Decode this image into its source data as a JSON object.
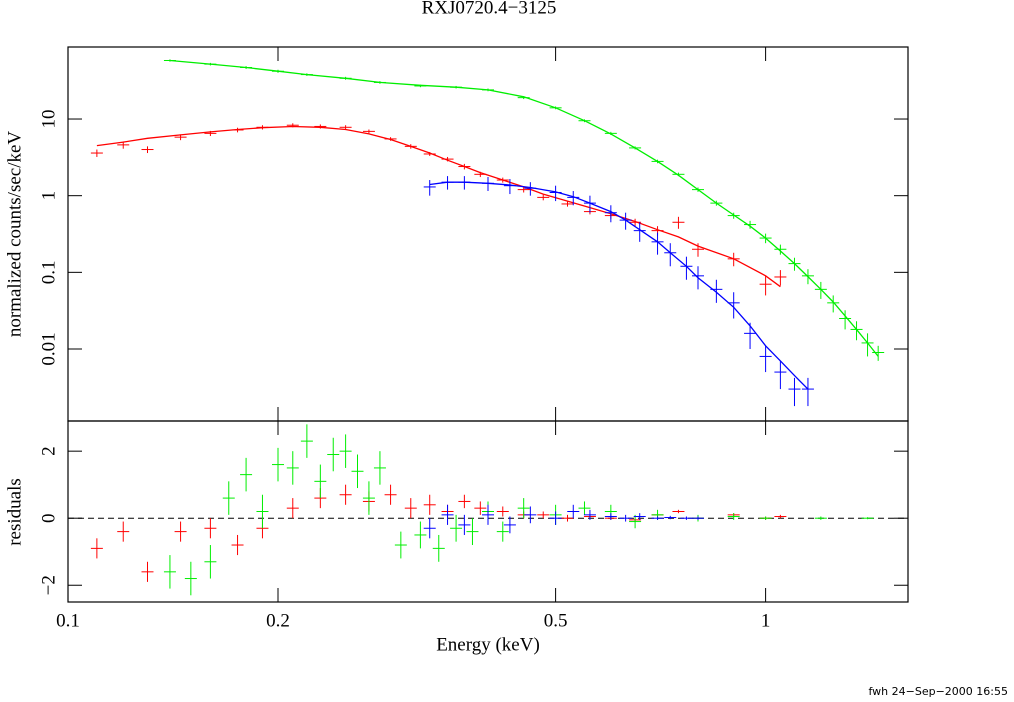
{
  "chart_data": [
    {
      "type": "scatter",
      "title": "RXJ0720.4−3125",
      "y_label": "normalized counts/sec/keV",
      "xlog": true,
      "ylog": true,
      "xlim": [
        0.1,
        1.6
      ],
      "ylim": [
        0.00115,
        87
      ],
      "xticks": [
        0.1,
        0.2,
        0.5,
        1
      ],
      "yticks": [
        0.01,
        0.1,
        1,
        10
      ],
      "series": [
        {
          "color": "#ff0000",
          "x": [
            0.11,
            0.12,
            0.13,
            0.145,
            0.16,
            0.175,
            0.19,
            0.21,
            0.23,
            0.25,
            0.27,
            0.29,
            0.31,
            0.33,
            0.35,
            0.37,
            0.39,
            0.42,
            0.45,
            0.48,
            0.52,
            0.56,
            0.6,
            0.65,
            0.7,
            0.75,
            0.8,
            0.9,
            1.0,
            1.05
          ],
          "values": [
            3.6,
            4.6,
            4.0,
            5.8,
            6.5,
            7.2,
            7.8,
            8.3,
            8.0,
            7.8,
            6.9,
            5.5,
            4.4,
            3.5,
            3.0,
            2.4,
            1.9,
            1.6,
            1.2,
            0.95,
            0.78,
            0.62,
            0.55,
            0.45,
            0.35,
            0.45,
            0.2,
            0.15,
            0.07,
            0.087
          ],
          "yerr": [
            0.4,
            0.5,
            0.4,
            0.5,
            0.5,
            0.5,
            0.5,
            0.5,
            0.5,
            0.5,
            0.4,
            0.3,
            0.3,
            0.2,
            0.2,
            0.2,
            0.15,
            0.12,
            0.1,
            0.08,
            0.06,
            0.05,
            0.05,
            0.05,
            0.05,
            0.08,
            0.04,
            0.03,
            0.02,
            0.02
          ],
          "model": [
            4.5,
            5.0,
            5.6,
            6.2,
            6.8,
            7.3,
            7.7,
            8.0,
            7.8,
            7.3,
            6.4,
            5.4,
            4.4,
            3.6,
            2.9,
            2.4,
            2.0,
            1.6,
            1.3,
            1.05,
            0.85,
            0.7,
            0.58,
            0.46,
            0.36,
            0.29,
            0.22,
            0.15,
            0.09,
            0.065
          ]
        },
        {
          "color": "#00ee00",
          "x": [
            0.14,
            0.16,
            0.18,
            0.2,
            0.22,
            0.25,
            0.28,
            0.32,
            0.36,
            0.4,
            0.45,
            0.5,
            0.55,
            0.6,
            0.65,
            0.7,
            0.75,
            0.8,
            0.85,
            0.9,
            0.95,
            1.0,
            1.05,
            1.1,
            1.15,
            1.2,
            1.25,
            1.3,
            1.35,
            1.4,
            1.45
          ],
          "values": [
            58,
            52,
            47,
            42,
            38,
            34,
            30,
            27,
            26,
            24,
            19,
            14,
            9.5,
            6.5,
            4.2,
            2.8,
            1.9,
            1.2,
            0.8,
            0.55,
            0.42,
            0.28,
            0.2,
            0.13,
            0.09,
            0.06,
            0.04,
            0.025,
            0.018,
            0.012,
            0.009
          ],
          "yerr": [
            2,
            2,
            2,
            2,
            1.5,
            1.5,
            1.2,
            1,
            1,
            1,
            0.8,
            0.6,
            0.4,
            0.3,
            0.2,
            0.15,
            0.1,
            0.08,
            0.06,
            0.05,
            0.05,
            0.04,
            0.03,
            0.025,
            0.02,
            0.015,
            0.01,
            0.007,
            0.005,
            0.004,
            0.002
          ],
          "model": [
            58,
            52,
            47,
            42,
            38,
            34,
            30,
            27.5,
            26,
            24,
            19.5,
            14,
            9.5,
            6.4,
            4.2,
            2.8,
            1.85,
            1.2,
            0.8,
            0.56,
            0.4,
            0.28,
            0.19,
            0.13,
            0.088,
            0.06,
            0.041,
            0.027,
            0.018,
            0.012,
            0.008
          ]
        },
        {
          "color": "#0000ff",
          "x": [
            0.33,
            0.35,
            0.37,
            0.4,
            0.43,
            0.46,
            0.5,
            0.53,
            0.56,
            0.6,
            0.63,
            0.66,
            0.7,
            0.73,
            0.77,
            0.8,
            0.85,
            0.9,
            0.95,
            1.0,
            1.05,
            1.1,
            1.15
          ],
          "values": [
            1.3,
            1.5,
            1.5,
            1.45,
            1.35,
            1.25,
            1.1,
            0.95,
            0.8,
            0.6,
            0.48,
            0.35,
            0.25,
            0.18,
            0.12,
            0.09,
            0.06,
            0.04,
            0.016,
            0.008,
            0.005,
            0.003,
            0.003
          ],
          "yerr": [
            0.3,
            0.3,
            0.3,
            0.3,
            0.3,
            0.25,
            0.25,
            0.2,
            0.2,
            0.15,
            0.12,
            0.1,
            0.08,
            0.06,
            0.04,
            0.03,
            0.02,
            0.015,
            0.006,
            0.003,
            0.002,
            0.0012,
            0.0012
          ],
          "model": [
            1.4,
            1.5,
            1.5,
            1.45,
            1.38,
            1.28,
            1.12,
            0.97,
            0.8,
            0.62,
            0.48,
            0.36,
            0.25,
            0.18,
            0.12,
            0.085,
            0.055,
            0.035,
            0.02,
            0.011,
            0.007,
            0.0045,
            0.003
          ]
        }
      ]
    },
    {
      "type": "scatter",
      "y_label": "residuals",
      "x_label": "Energy (keV)",
      "xlog": true,
      "ylog": false,
      "xlim": [
        0.1,
        1.6
      ],
      "ylim": [
        -2.5,
        2.9
      ],
      "xticks": [
        0.1,
        0.2,
        0.5,
        1
      ],
      "yticks": [
        {
          "value": -2,
          "label": "−2"
        },
        0,
        2
      ],
      "reference_line": 0,
      "series": [
        {
          "color": "#ff0000",
          "x": [
            0.11,
            0.12,
            0.13,
            0.145,
            0.16,
            0.175,
            0.19,
            0.21,
            0.23,
            0.25,
            0.27,
            0.29,
            0.31,
            0.33,
            0.35,
            0.37,
            0.39,
            0.42,
            0.45,
            0.48,
            0.52,
            0.56,
            0.6,
            0.65,
            0.7,
            0.75,
            0.8,
            0.9,
            1.0,
            1.05
          ],
          "values": [
            -0.9,
            -0.4,
            -1.6,
            -0.4,
            -0.3,
            -0.8,
            -0.3,
            0.3,
            0.6,
            0.7,
            0.5,
            0.7,
            0.3,
            0.4,
            0.2,
            0.5,
            0.3,
            0.2,
            0.1,
            0.1,
            0,
            0.05,
            0,
            -0.05,
            0.1,
            0.2,
            0,
            0.1,
            0,
            0.05
          ],
          "yerr": [
            0.3,
            0.3,
            0.3,
            0.3,
            0.3,
            0.3,
            0.3,
            0.3,
            0.3,
            0.3,
            0.3,
            0.3,
            0.3,
            0.3,
            0.2,
            0.2,
            0.2,
            0.15,
            0.1,
            0.1,
            0.1,
            0.05,
            0.05,
            0.05,
            0.05,
            0.05,
            0.05,
            0.05,
            0.05,
            0.05
          ]
        },
        {
          "color": "#00ee00",
          "x": [
            0.14,
            0.15,
            0.16,
            0.17,
            0.18,
            0.19,
            0.2,
            0.21,
            0.22,
            0.23,
            0.24,
            0.25,
            0.26,
            0.27,
            0.28,
            0.3,
            0.32,
            0.34,
            0.36,
            0.38,
            0.4,
            0.42,
            0.45,
            0.5,
            0.55,
            0.6,
            0.65,
            0.7,
            0.8,
            0.9,
            1.0,
            1.2,
            1.4
          ],
          "values": [
            -1.6,
            -1.8,
            -1.3,
            0.6,
            1.3,
            0.2,
            1.6,
            1.5,
            2.3,
            1.1,
            1.9,
            2.0,
            1.4,
            0.6,
            1.5,
            -0.8,
            -0.5,
            -0.9,
            -0.3,
            -0.4,
            0.2,
            -0.4,
            0.3,
            0.1,
            0.3,
            0.2,
            -0.1,
            0.1,
            0,
            0.05,
            0,
            0,
            0
          ],
          "yerr": [
            0.5,
            0.5,
            0.5,
            0.5,
            0.5,
            0.5,
            0.5,
            0.5,
            0.5,
            0.5,
            0.5,
            0.5,
            0.5,
            0.5,
            0.5,
            0.4,
            0.4,
            0.4,
            0.4,
            0.4,
            0.3,
            0.3,
            0.3,
            0.3,
            0.2,
            0.2,
            0.2,
            0.15,
            0.1,
            0.1,
            0.05,
            0.05,
            0.03
          ]
        },
        {
          "color": "#0000ff",
          "x": [
            0.33,
            0.35,
            0.37,
            0.4,
            0.43,
            0.46,
            0.5,
            0.53,
            0.56,
            0.6,
            0.63,
            0.66,
            0.7,
            0.73,
            0.77,
            0.8
          ],
          "values": [
            -0.3,
            0.1,
            -0.2,
            0.1,
            -0.2,
            0.1,
            0,
            0.2,
            0.1,
            0.05,
            0,
            0.05,
            0,
            0.02,
            0,
            0
          ],
          "yerr": [
            0.3,
            0.3,
            0.3,
            0.3,
            0.25,
            0.25,
            0.2,
            0.2,
            0.15,
            0.1,
            0.1,
            0.1,
            0.05,
            0.05,
            0.05,
            0.05
          ]
        }
      ]
    }
  ],
  "footer": "fwh 24−Sep−2000 16:55"
}
